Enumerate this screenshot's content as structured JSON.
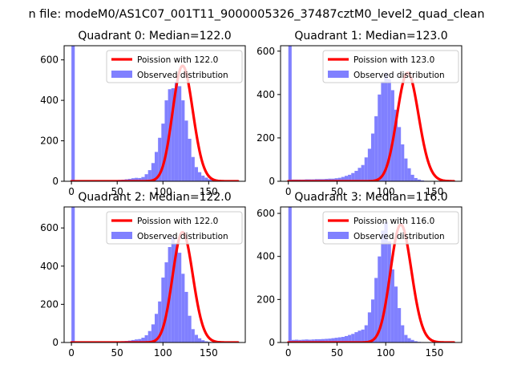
{
  "figure": {
    "suptitle": "n file: modeM0/AS1C07_001T11_9000005326_37487cztM0_level2_quad_clean"
  },
  "colors": {
    "histogram": "#8080ff",
    "poisson": "#ff0000",
    "background": "#ffffff",
    "axes": "#000000"
  },
  "chart_data": [
    {
      "type": "bar",
      "title": "Quadrant 0: Median=122.0",
      "xlim": [
        -8,
        190
      ],
      "ylim": [
        0,
        670
      ],
      "xticks": [
        0,
        50,
        100,
        150
      ],
      "yticks": [
        0,
        200,
        400,
        600
      ],
      "legend_position": "top-right",
      "legend": [
        "Poission with 122.0",
        "Observed distribution"
      ],
      "median": 122.0,
      "hist_range": [
        0,
        182
      ],
      "bin_width": 3.64,
      "counts": [
        670,
        4,
        4,
        4,
        4,
        4,
        4,
        4,
        4,
        4,
        5,
        5,
        5,
        6,
        7,
        8,
        10,
        12,
        15,
        17,
        16,
        21,
        35,
        55,
        90,
        145,
        215,
        285,
        400,
        455,
        460,
        490,
        470,
        400,
        300,
        210,
        120,
        70,
        45,
        28,
        18,
        10,
        6,
        3,
        2,
        1,
        0,
        0,
        0,
        0
      ],
      "poisson_mean": 122.0,
      "poisson_scale": 15800
    },
    {
      "type": "bar",
      "title": "Quadrant 1: Median=123.0",
      "xlim": [
        -8,
        178
      ],
      "ylim": [
        0,
        625
      ],
      "xticks": [
        0,
        50,
        100,
        150
      ],
      "yticks": [
        0,
        200,
        400,
        600
      ],
      "legend_position": "top-right",
      "legend": [
        "Poission with 123.0",
        "Observed distribution"
      ],
      "median": 123.0,
      "hist_range": [
        0,
        170
      ],
      "bin_width": 3.4,
      "counts": [
        625,
        8,
        8,
        8,
        8,
        9,
        9,
        9,
        10,
        10,
        10,
        11,
        12,
        12,
        14,
        16,
        20,
        25,
        30,
        38,
        48,
        62,
        75,
        110,
        150,
        220,
        300,
        400,
        460,
        500,
        470,
        420,
        330,
        250,
        170,
        105,
        60,
        30,
        15,
        8,
        4,
        2,
        1,
        0,
        0,
        0,
        0,
        0,
        0,
        0
      ],
      "poisson_mean": 123.0,
      "poisson_scale": 13900
    },
    {
      "type": "bar",
      "title": "Quadrant 2: Median=122.0",
      "xlim": [
        -8,
        190
      ],
      "ylim": [
        0,
        710
      ],
      "xticks": [
        0,
        50,
        100,
        150
      ],
      "yticks": [
        0,
        200,
        400,
        600
      ],
      "legend_position": "top-right",
      "legend": [
        "Poission with 122.0",
        "Observed distribution"
      ],
      "median": 122.0,
      "hist_range": [
        0,
        182
      ],
      "bin_width": 3.64,
      "counts": [
        710,
        3,
        3,
        3,
        3,
        3,
        3,
        3,
        3,
        4,
        4,
        5,
        5,
        6,
        6,
        7,
        8,
        10,
        13,
        16,
        18,
        25,
        38,
        60,
        95,
        150,
        215,
        340,
        420,
        500,
        555,
        520,
        470,
        360,
        265,
        140,
        70,
        40,
        22,
        12,
        6,
        3,
        2,
        1,
        0,
        0,
        0,
        0,
        0,
        0
      ],
      "poisson_mean": 122.0,
      "poisson_scale": 16000
    },
    {
      "type": "bar",
      "title": "Quadrant 3: Median=116.0",
      "xlim": [
        -8,
        178
      ],
      "ylim": [
        0,
        630
      ],
      "xticks": [
        0,
        50,
        100,
        150
      ],
      "yticks": [
        0,
        200,
        400,
        600
      ],
      "legend_position": "top-right",
      "legend": [
        "Poission with 116.0",
        "Observed distribution"
      ],
      "median": 116.0,
      "hist_range": [
        0,
        170
      ],
      "bin_width": 3.4,
      "counts": [
        630,
        12,
        13,
        12,
        13,
        14,
        13,
        14,
        15,
        15,
        16,
        17,
        18,
        20,
        22,
        24,
        26,
        30,
        35,
        40,
        48,
        55,
        60,
        80,
        140,
        200,
        300,
        400,
        520,
        560,
        470,
        340,
        260,
        160,
        80,
        35,
        20,
        12,
        6,
        3,
        2,
        1,
        0,
        0,
        0,
        0,
        0,
        0,
        0,
        0
      ],
      "poisson_mean": 116.0,
      "poisson_scale": 14800
    }
  ]
}
